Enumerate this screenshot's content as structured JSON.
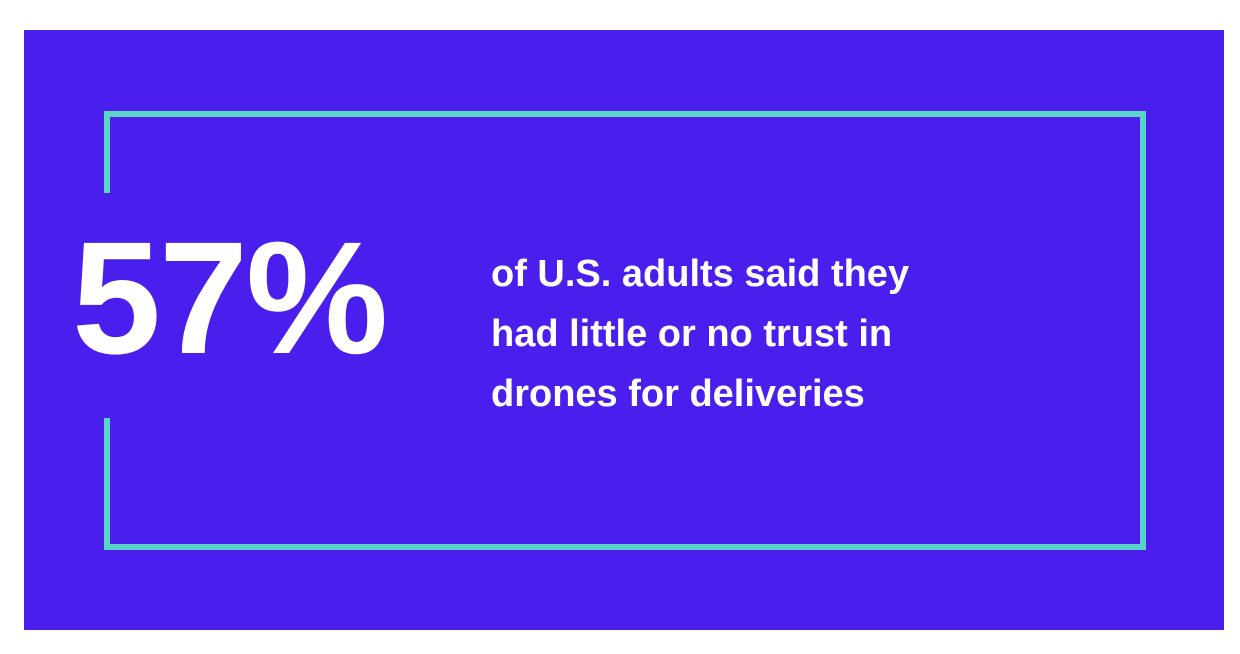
{
  "stat": {
    "value": "57%"
  },
  "description": {
    "lines": [
      "of U.S. adults said they",
      "had little or no trust in",
      "drones for deliveries"
    ]
  },
  "colors": {
    "background": "#4a1eec",
    "frame": "#5ad4c8",
    "text": "#ffffff"
  }
}
